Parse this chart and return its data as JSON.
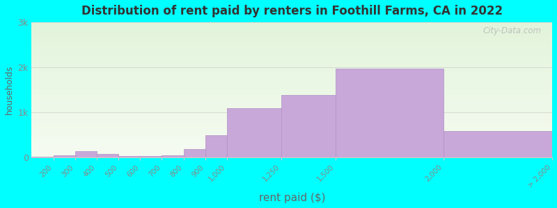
{
  "bin_edges": [
    100,
    200,
    300,
    400,
    500,
    600,
    700,
    800,
    900,
    1000,
    1250,
    1500,
    2000,
    2500
  ],
  "values": [
    20,
    50,
    135,
    80,
    38,
    28,
    50,
    185,
    490,
    1100,
    1380,
    1970,
    590
  ],
  "xtick_positions": [
    200,
    300,
    400,
    500,
    600,
    700,
    800,
    900,
    1000,
    1250,
    1500,
    2000,
    2500
  ],
  "xtick_labels": [
    "200",
    "300",
    "400",
    "500",
    "600",
    "700",
    "800",
    "900",
    "1,000",
    "1,250",
    "1,500",
    "2,000",
    "> 2,000"
  ],
  "bar_color": "#c8a8d8",
  "bar_edge_color": "#b090c8",
  "title": "Distribution of rent paid by renters in Foothill Farms, CA in 2022",
  "title_fontsize": 12,
  "title_fontweight": "bold",
  "xlabel": "rent paid ($)",
  "ylabel": "households",
  "xlabel_fontsize": 11,
  "ylabel_fontsize": 9,
  "ylim": [
    0,
    3000
  ],
  "yticks": [
    0,
    1000,
    2000,
    3000
  ],
  "ytick_labels": [
    "0",
    "1k",
    "2k",
    "3k"
  ],
  "background_color": "#00ffff",
  "grid_color": "#cccccc",
  "tick_color": "#888888",
  "label_color": "#666666",
  "title_color": "#333333",
  "watermark_text": "City-Data.com"
}
